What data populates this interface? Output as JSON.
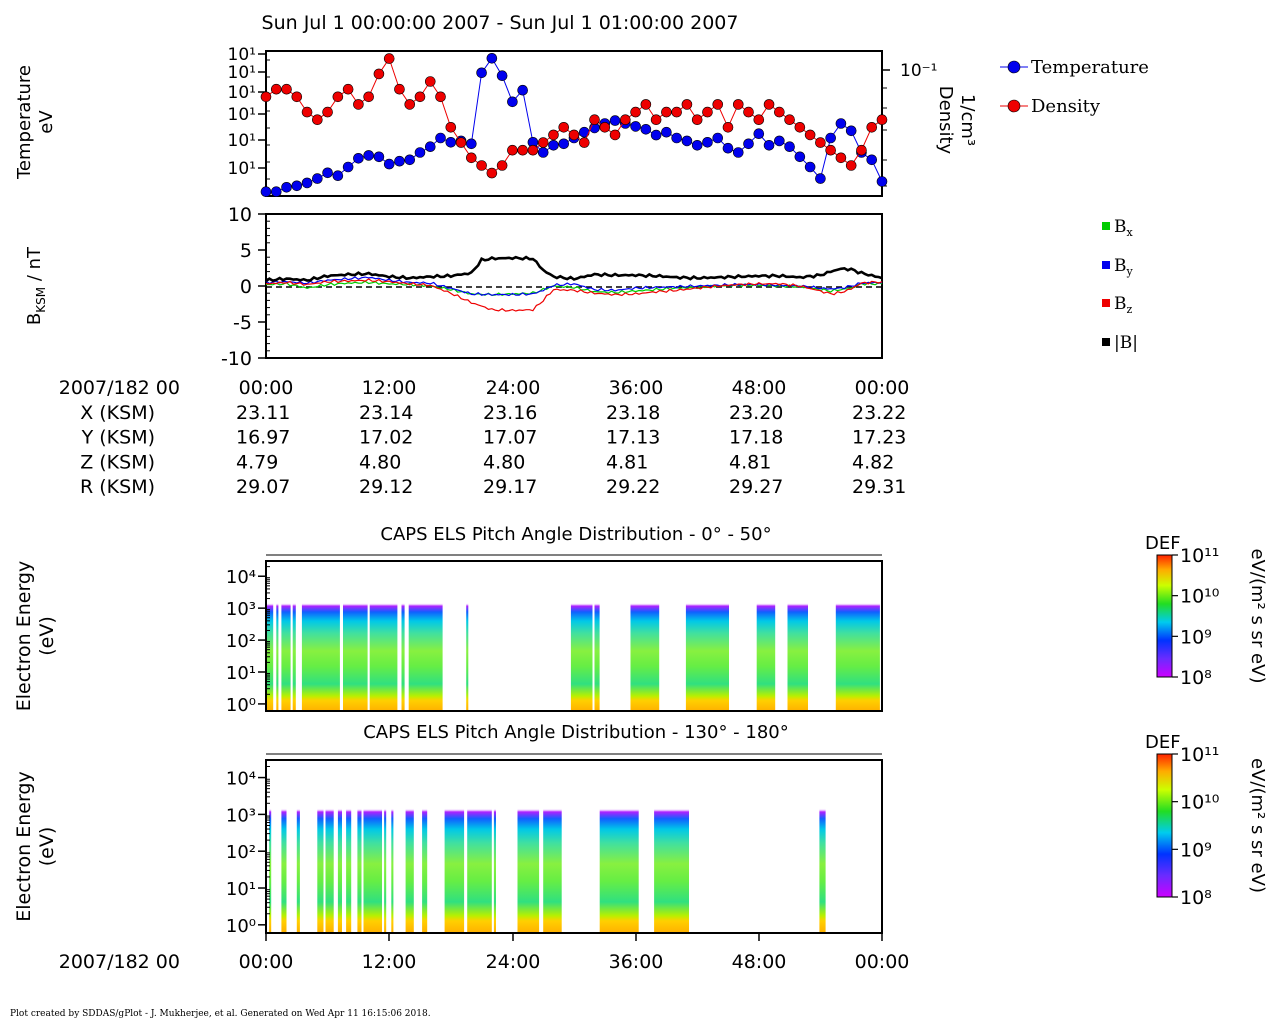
{
  "title": "Sun Jul  1 00:00:00 2007 - Sun Jul  1 01:00:00 2007",
  "footer": "Plot created by SDDAS/gPlot - J. Mukherjee, et al.  Generated on Wed Apr 11 16:15:06 2018.",
  "colors": {
    "temperature": "#0000ee",
    "density": "#ee0000",
    "bx": "#00cc00",
    "by": "#0000ee",
    "bz": "#ee0000",
    "b_total": "#000000"
  },
  "chart_data": [
    {
      "type": "line",
      "panel": "plasma",
      "ylabel_left": [
        "Temperature",
        "eV"
      ],
      "ylabel_right": [
        "Density",
        "1/cm³"
      ],
      "left_ticks": [
        "10¹",
        "10¹",
        "10¹",
        "10¹",
        "10¹",
        "10¹"
      ],
      "right_ticks": [
        "10⁻¹"
      ],
      "xlim": [
        0,
        60
      ],
      "legend": "right",
      "series": [
        {
          "name": "Temperature",
          "x": [
            0,
            1,
            2,
            3,
            4,
            5,
            6,
            7,
            8,
            9,
            10,
            11,
            12,
            13,
            14,
            15,
            16,
            17,
            18,
            19,
            20,
            21,
            22,
            23,
            24,
            25,
            26,
            27,
            28,
            29,
            30,
            31,
            32,
            33,
            34,
            35,
            36,
            37,
            38,
            39,
            40,
            41,
            42,
            43,
            44,
            45,
            46,
            47,
            48,
            49,
            50,
            51,
            52,
            53,
            54,
            55,
            56,
            57,
            58,
            59,
            60
          ],
          "values": [
            0.03,
            0.03,
            0.06,
            0.07,
            0.09,
            0.12,
            0.16,
            0.14,
            0.2,
            0.26,
            0.28,
            0.27,
            0.22,
            0.24,
            0.25,
            0.3,
            0.34,
            0.4,
            0.37,
            0.38,
            0.36,
            0.85,
            0.95,
            0.83,
            0.65,
            0.73,
            0.37,
            0.3,
            0.35,
            0.36,
            0.4,
            0.44,
            0.47,
            0.5,
            0.52,
            0.5,
            0.48,
            0.46,
            0.42,
            0.44,
            0.4,
            0.38,
            0.35,
            0.37,
            0.4,
            0.33,
            0.3,
            0.36,
            0.43,
            0.35,
            0.38,
            0.34,
            0.27,
            0.2,
            0.12,
            0.4,
            0.5,
            0.45,
            0.3,
            0.25,
            0.1
          ],
          "point_style": "circle"
        },
        {
          "name": "Density",
          "x": [
            0,
            1,
            2,
            3,
            4,
            5,
            6,
            7,
            8,
            9,
            10,
            11,
            12,
            13,
            14,
            15,
            16,
            17,
            18,
            19,
            20,
            21,
            22,
            23,
            24,
            25,
            26,
            27,
            28,
            29,
            30,
            31,
            32,
            33,
            34,
            35,
            36,
            37,
            38,
            39,
            40,
            41,
            42,
            43,
            44,
            45,
            46,
            47,
            48,
            49,
            50,
            51,
            52,
            53,
            54,
            55,
            56,
            57,
            58,
            59,
            60
          ],
          "values": [
            0.13,
            0.14,
            0.14,
            0.13,
            0.11,
            0.1,
            0.11,
            0.13,
            0.14,
            0.12,
            0.13,
            0.16,
            0.18,
            0.14,
            0.12,
            0.13,
            0.15,
            0.13,
            0.09,
            0.07,
            0.05,
            0.04,
            0.03,
            0.04,
            0.06,
            0.06,
            0.06,
            0.07,
            0.08,
            0.09,
            0.08,
            0.07,
            0.1,
            0.09,
            0.08,
            0.1,
            0.11,
            0.12,
            0.1,
            0.11,
            0.11,
            0.12,
            0.1,
            0.11,
            0.12,
            0.09,
            0.12,
            0.11,
            0.1,
            0.12,
            0.11,
            0.1,
            0.09,
            0.08,
            0.07,
            0.06,
            0.05,
            0.04,
            0.06,
            0.09,
            0.1
          ],
          "point_style": "circle"
        }
      ]
    },
    {
      "type": "line",
      "panel": "magnetic_field",
      "ylabel": "B_KSM / nT",
      "ylim": [
        -10,
        10
      ],
      "yticks": [
        -10,
        -5,
        0,
        5,
        10
      ],
      "xlim": [
        0,
        60
      ],
      "legend": "right",
      "series": [
        {
          "name": "Bx",
          "x": [
            0,
            2,
            4,
            6,
            8,
            10,
            12,
            14,
            16,
            18,
            20,
            22,
            24,
            26,
            27,
            28,
            30,
            32,
            34,
            36,
            38,
            40,
            42,
            44,
            46,
            48,
            50,
            52,
            54,
            55,
            56,
            57,
            58,
            60
          ],
          "values": [
            0.2,
            0.3,
            -0.3,
            0.2,
            0.4,
            0.5,
            0.3,
            0.2,
            0.0,
            -0.5,
            -1.1,
            -1.2,
            -1.1,
            -1.0,
            -0.5,
            0.0,
            -0.2,
            -0.8,
            -0.9,
            -0.7,
            -0.5,
            -0.3,
            -0.2,
            0.0,
            0.1,
            0.1,
            0.0,
            -0.1,
            -0.5,
            -0.7,
            -0.5,
            -0.3,
            0.3,
            0.3
          ]
        },
        {
          "name": "By",
          "x": [
            0,
            2,
            4,
            6,
            8,
            10,
            12,
            14,
            16,
            18,
            20,
            22,
            24,
            26,
            27,
            28,
            30,
            32,
            34,
            36,
            38,
            40,
            42,
            44,
            46,
            48,
            50,
            52,
            54,
            55,
            56,
            57,
            58,
            60
          ],
          "values": [
            0.5,
            0.6,
            0.4,
            0.8,
            1.0,
            1.2,
            0.8,
            0.5,
            0.4,
            -0.3,
            -1.1,
            -1.2,
            -1.2,
            -1.1,
            -0.6,
            0.1,
            0.3,
            -0.5,
            -0.6,
            -0.3,
            -0.2,
            -0.1,
            0.0,
            0.1,
            0.2,
            0.2,
            0.1,
            0.0,
            -0.3,
            -0.4,
            -0.3,
            0.0,
            0.4,
            0.5
          ]
        },
        {
          "name": "Bz",
          "x": [
            0,
            2,
            4,
            6,
            8,
            10,
            12,
            14,
            16,
            18,
            20,
            22,
            24,
            26,
            27,
            28,
            30,
            32,
            34,
            36,
            38,
            40,
            42,
            44,
            46,
            48,
            50,
            52,
            54,
            55,
            56,
            57,
            58,
            60
          ],
          "values": [
            0.3,
            0.5,
            0.2,
            0.6,
            0.7,
            0.8,
            0.6,
            0.3,
            0.1,
            -1.0,
            -2.3,
            -3.3,
            -3.4,
            -3.3,
            -2.0,
            -0.5,
            -0.6,
            -1.0,
            -1.2,
            -1.1,
            -0.8,
            -0.6,
            -0.3,
            0.0,
            0.2,
            0.3,
            0.3,
            0.0,
            -0.7,
            -1.1,
            -0.9,
            -0.4,
            0.4,
            0.6
          ]
        },
        {
          "name": "|B|",
          "x": [
            0,
            2,
            4,
            6,
            8,
            10,
            12,
            14,
            16,
            18,
            20,
            21,
            22,
            24,
            26,
            27,
            28,
            30,
            32,
            34,
            36,
            38,
            40,
            42,
            44,
            46,
            48,
            50,
            52,
            54,
            55,
            56,
            57,
            58,
            60
          ],
          "values": [
            0.8,
            1.0,
            0.8,
            1.4,
            1.6,
            1.7,
            1.3,
            1.1,
            1.3,
            1.4,
            1.8,
            3.6,
            3.8,
            3.9,
            3.8,
            2.2,
            1.3,
            1.0,
            1.6,
            1.5,
            1.5,
            1.4,
            1.2,
            1.1,
            1.2,
            1.3,
            1.4,
            1.4,
            1.2,
            1.5,
            2.0,
            2.4,
            2.3,
            1.8,
            1.1
          ]
        }
      ],
      "legend_labels": {
        "bx_base": "B",
        "bx_sub": "x",
        "by_base": "B",
        "by_sub": "y",
        "bz_base": "B",
        "bz_sub": "z",
        "bt": "|B|"
      }
    },
    {
      "type": "heatmap",
      "panel": "els_low",
      "title": "CAPS ELS Pitch Angle Distribution - 0° - 50°",
      "ylabel": [
        "Electron Energy",
        "(eV)"
      ],
      "yscale": "log",
      "ylim": [
        0.6,
        30000
      ],
      "yticks": [
        "10⁰",
        "10¹",
        "10²",
        "10³",
        "10⁴"
      ],
      "colorbar": {
        "label": "DEF",
        "units": "eV/(m² s sr eV)",
        "ticks": [
          "10¹¹",
          "10¹⁰",
          "10⁹",
          "10⁸"
        ],
        "range": [
          8,
          11
        ],
        "scale": "log"
      },
      "data_intervals_minutes": [
        [
          0.0,
          0.7
        ],
        [
          1.0,
          1.2
        ],
        [
          1.5,
          2.4
        ],
        [
          2.6,
          2.9
        ],
        [
          3.5,
          7.2
        ],
        [
          7.5,
          9.9
        ],
        [
          10.1,
          12.8
        ],
        [
          13.2,
          13.5
        ],
        [
          13.9,
          17.2
        ],
        [
          19.5,
          19.7
        ],
        [
          29.7,
          31.8
        ],
        [
          32.0,
          32.5
        ],
        [
          35.5,
          38.3
        ],
        [
          40.9,
          45.1
        ],
        [
          47.8,
          49.6
        ],
        [
          50.8,
          52.8
        ],
        [
          55.5,
          59.8
        ]
      ]
    },
    {
      "type": "heatmap",
      "panel": "els_high",
      "title": "CAPS ELS Pitch Angle Distribution - 130° - 180°",
      "ylabel": [
        "Electron Energy",
        "(eV)"
      ],
      "yscale": "log",
      "ylim": [
        0.6,
        30000
      ],
      "yticks": [
        "10⁰",
        "10¹",
        "10²",
        "10³",
        "10⁴"
      ],
      "colorbar": {
        "label": "DEF",
        "units": "eV/(m² s sr eV)",
        "ticks": [
          "10¹¹",
          "10¹⁰",
          "10⁹",
          "10⁸"
        ],
        "range": [
          8,
          11
        ],
        "scale": "log"
      },
      "data_intervals_minutes": [
        [
          0.3,
          0.5
        ],
        [
          1.5,
          2.0
        ],
        [
          3.0,
          3.3
        ],
        [
          5.0,
          5.6
        ],
        [
          5.8,
          6.6
        ],
        [
          7.0,
          7.4
        ],
        [
          7.8,
          8.3
        ],
        [
          8.9,
          9.3
        ],
        [
          9.5,
          11.3
        ],
        [
          11.5,
          11.7
        ],
        [
          12.2,
          12.4
        ],
        [
          13.6,
          14.4
        ],
        [
          15.2,
          15.7
        ],
        [
          17.4,
          19.3
        ],
        [
          19.6,
          22.0
        ],
        [
          22.2,
          22.4
        ],
        [
          24.5,
          26.6
        ],
        [
          27.0,
          28.8
        ],
        [
          32.5,
          36.3
        ],
        [
          37.8,
          41.2
        ],
        [
          53.9,
          54.5
        ]
      ]
    }
  ],
  "time_axis": {
    "label": "2007/182 00",
    "ticks": [
      "00:00",
      "12:00",
      "24:00",
      "36:00",
      "48:00",
      "00:00"
    ]
  },
  "ephemeris": {
    "rows": [
      {
        "label": "X (KSM)",
        "values": [
          "23.11",
          "23.14",
          "23.16",
          "23.18",
          "23.20",
          "23.22"
        ]
      },
      {
        "label": "Y (KSM)",
        "values": [
          "16.97",
          "17.02",
          "17.07",
          "17.13",
          "17.18",
          "17.23"
        ]
      },
      {
        "label": "Z (KSM)",
        "values": [
          "4.79",
          "4.80",
          "4.80",
          "4.81",
          "4.81",
          "4.82"
        ]
      },
      {
        "label": "R (KSM)",
        "values": [
          "29.07",
          "29.12",
          "29.17",
          "29.22",
          "29.27",
          "29.31"
        ]
      }
    ]
  }
}
